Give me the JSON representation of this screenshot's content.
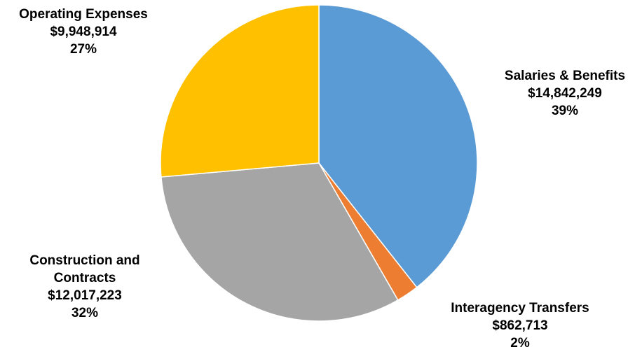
{
  "chart_data": {
    "type": "pie",
    "title": "",
    "start_angle_deg": 0,
    "direction": "clockwise",
    "slices": [
      {
        "label": "Salaries & Benefits",
        "amount": "$14,842,249",
        "percent": "39%",
        "value": 14842249,
        "color": "#5B9BD5"
      },
      {
        "label": "Interagency Transfers",
        "amount": "$862,713",
        "percent": "2%",
        "value": 862713,
        "color": "#ED7D31"
      },
      {
        "label_lines": [
          "Construction and",
          "Contracts"
        ],
        "amount": "$12,017,223",
        "percent": "32%",
        "value": 12017223,
        "color": "#A5A5A5"
      },
      {
        "label": "Operating Expenses",
        "amount": "$9,948,914",
        "percent": "27%",
        "value": 9948914,
        "color": "#FFC000"
      }
    ]
  }
}
